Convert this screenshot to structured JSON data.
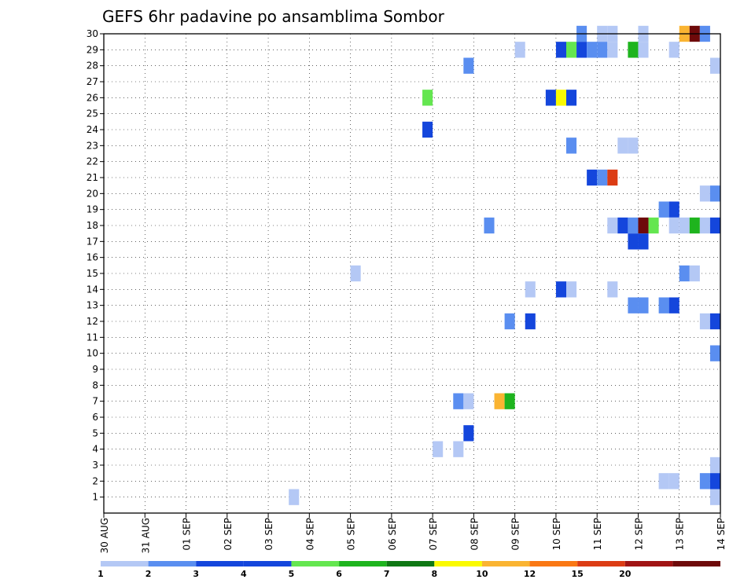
{
  "chart_data": {
    "type": "heatmap",
    "title": "GEFS 6hr padavine po ansamblima Sombor",
    "xlabel": "",
    "ylabel": "",
    "y_ticks": [
      1,
      2,
      3,
      4,
      5,
      6,
      7,
      8,
      9,
      10,
      11,
      12,
      13,
      14,
      15,
      16,
      17,
      18,
      19,
      20,
      21,
      22,
      23,
      24,
      25,
      26,
      27,
      28,
      29,
      30
    ],
    "ylim": [
      0,
      30
    ],
    "x_ticks": [
      "30 AUG",
      "31 AUG",
      "01 SEP",
      "02 SEP",
      "03 SEP",
      "04 SEP",
      "05 SEP",
      "06 SEP",
      "07 SEP",
      "08 SEP",
      "09 SEP",
      "10 SEP",
      "11 SEP",
      "12 SEP",
      "13 SEP",
      "14 SEP"
    ],
    "x_unit": "6-hour step",
    "xlim": [
      0,
      60
    ],
    "grid": true,
    "colorbar": {
      "labels": [
        "1",
        "2",
        "3",
        "4",
        "5",
        "6",
        "7",
        "8",
        "10",
        "12",
        "15",
        "20"
      ],
      "colors": [
        "#b4c8f5",
        "#5a8ef0",
        "#1446dc",
        "#1446dc",
        "#64e650",
        "#1eb41e",
        "#0f7814",
        "#fafa00",
        "#fab432",
        "#fa7814",
        "#dc3c14",
        "#a01414",
        "#6e0a0a"
      ]
    },
    "cells": [
      {
        "t": 46.5,
        "m": 30,
        "v": 2
      },
      {
        "t": 49.5,
        "m": 30,
        "v": 1
      },
      {
        "t": 48.5,
        "m": 30,
        "v": 1
      },
      {
        "t": 52.5,
        "m": 30,
        "v": 1
      },
      {
        "t": 56.5,
        "m": 30,
        "v": 9
      },
      {
        "t": 57.5,
        "m": 30,
        "v": 14
      },
      {
        "t": 58.5,
        "m": 30,
        "v": 2
      },
      {
        "t": 40.5,
        "m": 29,
        "v": 1
      },
      {
        "t": 44.5,
        "m": 29,
        "v": 3
      },
      {
        "t": 45.5,
        "m": 29,
        "v": 5
      },
      {
        "t": 46.5,
        "m": 29,
        "v": 3
      },
      {
        "t": 47.5,
        "m": 29,
        "v": 2
      },
      {
        "t": 48.5,
        "m": 29,
        "v": 2
      },
      {
        "t": 49.5,
        "m": 29,
        "v": 1
      },
      {
        "t": 51.5,
        "m": 29,
        "v": 6
      },
      {
        "t": 52.5,
        "m": 29,
        "v": 1
      },
      {
        "t": 55.5,
        "m": 29,
        "v": 1
      },
      {
        "t": 35.5,
        "m": 28,
        "v": 2
      },
      {
        "t": 59.5,
        "m": 28,
        "v": 1
      },
      {
        "t": 31.5,
        "m": 26,
        "v": 5
      },
      {
        "t": 43.5,
        "m": 26,
        "v": 3
      },
      {
        "t": 44.5,
        "m": 26,
        "v": 8
      },
      {
        "t": 45.5,
        "m": 26,
        "v": 4
      },
      {
        "t": 31.5,
        "m": 24,
        "v": 4
      },
      {
        "t": 45.5,
        "m": 23,
        "v": 2
      },
      {
        "t": 50.5,
        "m": 23,
        "v": 1
      },
      {
        "t": 51.5,
        "m": 23,
        "v": 1
      },
      {
        "t": 47.5,
        "m": 21,
        "v": 3
      },
      {
        "t": 48.5,
        "m": 21,
        "v": 2
      },
      {
        "t": 49.5,
        "m": 21,
        "v": 11
      },
      {
        "t": 58.5,
        "m": 20,
        "v": 1
      },
      {
        "t": 59.5,
        "m": 20,
        "v": 2
      },
      {
        "t": 61.5,
        "m": 20,
        "v": 3
      },
      {
        "t": 54.5,
        "m": 19,
        "v": 2
      },
      {
        "t": 55.5,
        "m": 19,
        "v": 4
      },
      {
        "t": 61.5,
        "m": 19,
        "v": 2
      },
      {
        "t": 37.5,
        "m": 18,
        "v": 2
      },
      {
        "t": 49.5,
        "m": 18,
        "v": 1
      },
      {
        "t": 50.5,
        "m": 18,
        "v": 4
      },
      {
        "t": 51.5,
        "m": 18,
        "v": 2
      },
      {
        "t": 52.5,
        "m": 18,
        "v": 13
      },
      {
        "t": 53.5,
        "m": 18,
        "v": 5
      },
      {
        "t": 55.5,
        "m": 18,
        "v": 1
      },
      {
        "t": 56.5,
        "m": 18,
        "v": 1
      },
      {
        "t": 57.5,
        "m": 18,
        "v": 6
      },
      {
        "t": 58.5,
        "m": 18,
        "v": 1
      },
      {
        "t": 59.5,
        "m": 18,
        "v": 4
      },
      {
        "t": 60.5,
        "m": 18,
        "v": 4
      },
      {
        "t": 62.5,
        "m": 18,
        "v": 1
      },
      {
        "t": 51.5,
        "m": 17,
        "v": 3
      },
      {
        "t": 52.5,
        "m": 17,
        "v": 3
      },
      {
        "t": 24.5,
        "m": 15,
        "v": 1
      },
      {
        "t": 56.5,
        "m": 15,
        "v": 2
      },
      {
        "t": 57.5,
        "m": 15,
        "v": 1
      },
      {
        "t": 41.5,
        "m": 14,
        "v": 1
      },
      {
        "t": 44.5,
        "m": 14,
        "v": 3
      },
      {
        "t": 45.5,
        "m": 14,
        "v": 1
      },
      {
        "t": 49.5,
        "m": 14,
        "v": 1
      },
      {
        "t": 51.5,
        "m": 13,
        "v": 2
      },
      {
        "t": 52.5,
        "m": 13,
        "v": 2
      },
      {
        "t": 54.5,
        "m": 13,
        "v": 2
      },
      {
        "t": 55.5,
        "m": 13,
        "v": 3
      },
      {
        "t": 39.5,
        "m": 12,
        "v": 2
      },
      {
        "t": 41.5,
        "m": 12,
        "v": 3
      },
      {
        "t": 58.5,
        "m": 12,
        "v": 1
      },
      {
        "t": 59.5,
        "m": 12,
        "v": 3
      },
      {
        "t": 60.5,
        "m": 12,
        "v": 1
      },
      {
        "t": 62.5,
        "m": 12,
        "v": 1
      },
      {
        "t": 59.5,
        "m": 10,
        "v": 2
      },
      {
        "t": 60.5,
        "m": 10,
        "v": 1
      },
      {
        "t": 34.5,
        "m": 7,
        "v": 2
      },
      {
        "t": 35.5,
        "m": 7,
        "v": 1
      },
      {
        "t": 38.5,
        "m": 7,
        "v": 9
      },
      {
        "t": 39.5,
        "m": 7,
        "v": 6
      },
      {
        "t": 61.5,
        "m": 7,
        "v": 3
      },
      {
        "t": 62.5,
        "m": 7,
        "v": 5
      },
      {
        "t": 35.5,
        "m": 5,
        "v": 3
      },
      {
        "t": 32.5,
        "m": 4,
        "v": 1
      },
      {
        "t": 34.5,
        "m": 4,
        "v": 1
      },
      {
        "t": 59.5,
        "m": 3,
        "v": 1
      },
      {
        "t": 61.5,
        "m": 3,
        "v": 3
      },
      {
        "t": 58.5,
        "m": 2,
        "v": 2
      },
      {
        "t": 59.5,
        "m": 2,
        "v": 3
      },
      {
        "t": 54.5,
        "m": 2,
        "v": 1
      },
      {
        "t": 55.5,
        "m": 2,
        "v": 1
      },
      {
        "t": 18.5,
        "m": 1,
        "v": 1
      },
      {
        "t": 59.5,
        "m": 1,
        "v": 1
      }
    ]
  }
}
